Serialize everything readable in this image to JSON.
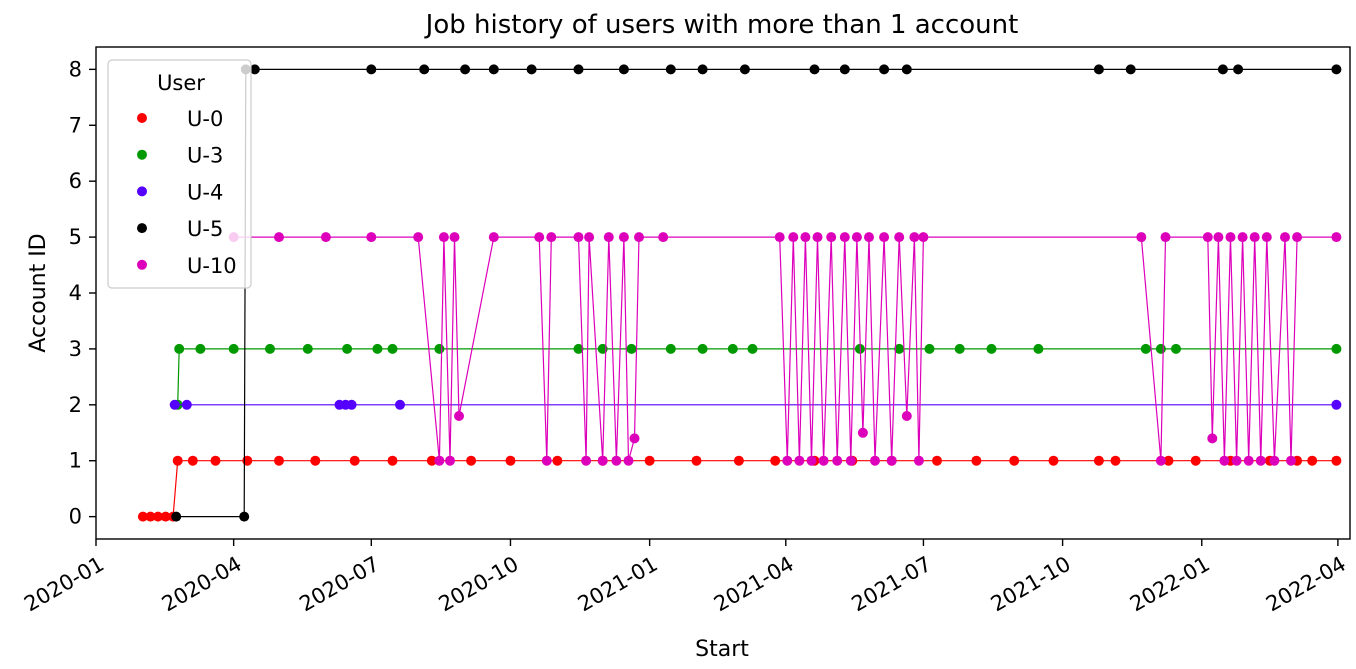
{
  "chart_data": {
    "type": "scatter",
    "title": "Job history of users with more than 1 account",
    "xlabel": "Start",
    "ylabel": "Account ID",
    "x_type": "date",
    "xlim": [
      "2020-01-01",
      "2022-04-09"
    ],
    "ylim": [
      -0.4,
      8.4
    ],
    "x_ticks": [
      "2020-01",
      "2020-04",
      "2020-07",
      "2020-10",
      "2021-01",
      "2021-04",
      "2021-07",
      "2021-10",
      "2022-01",
      "2022-04"
    ],
    "x_tick_dates": [
      "2020-01-01",
      "2020-04-01",
      "2020-07-01",
      "2020-10-01",
      "2021-01-01",
      "2021-04-01",
      "2021-07-01",
      "2021-10-01",
      "2022-01-01",
      "2022-04-01"
    ],
    "y_ticks": [
      0,
      1,
      2,
      3,
      4,
      5,
      6,
      7,
      8
    ],
    "grid": false,
    "connected": true,
    "legend": {
      "title": "User",
      "placement": "upper-left"
    },
    "series": [
      {
        "name": "U-0",
        "color": "#ff0000",
        "base_value": 1,
        "points": [
          [
            "2020-02-01",
            0
          ],
          [
            "2020-02-06",
            0
          ],
          [
            "2020-02-11",
            0
          ],
          [
            "2020-02-16",
            0
          ],
          [
            "2020-02-21",
            0
          ],
          [
            "2020-02-24",
            1
          ],
          [
            "2020-03-05",
            1
          ],
          [
            "2020-03-20",
            1
          ],
          [
            "2020-04-10",
            1
          ],
          [
            "2020-05-01",
            1
          ],
          [
            "2020-05-25",
            1
          ],
          [
            "2020-06-20",
            1
          ],
          [
            "2020-07-15",
            1
          ],
          [
            "2020-08-10",
            1
          ],
          [
            "2020-09-05",
            1
          ],
          [
            "2020-10-01",
            1
          ],
          [
            "2020-11-01",
            1
          ],
          [
            "2020-12-01",
            1
          ],
          [
            "2021-01-01",
            1
          ],
          [
            "2021-02-01",
            1
          ],
          [
            "2021-03-01",
            1
          ],
          [
            "2021-03-25",
            1
          ],
          [
            "2021-04-20",
            1
          ],
          [
            "2021-05-15",
            1
          ],
          [
            "2021-06-10",
            1
          ],
          [
            "2021-07-10",
            1
          ],
          [
            "2021-08-05",
            1
          ],
          [
            "2021-08-30",
            1
          ],
          [
            "2021-09-25",
            1
          ],
          [
            "2021-10-25",
            1
          ],
          [
            "2021-11-05",
            1
          ],
          [
            "2021-12-10",
            1
          ],
          [
            "2021-12-28",
            1
          ],
          [
            "2022-01-20",
            1
          ],
          [
            "2022-02-15",
            1
          ],
          [
            "2022-03-05",
            1
          ],
          [
            "2022-03-15",
            1
          ],
          [
            "2022-03-31",
            1
          ]
        ]
      },
      {
        "name": "U-3",
        "color": "#009900",
        "base_value": 3,
        "points": [
          [
            "2020-02-24",
            2
          ],
          [
            "2020-02-25",
            3
          ],
          [
            "2020-03-10",
            3
          ],
          [
            "2020-04-01",
            3
          ],
          [
            "2020-04-25",
            3
          ],
          [
            "2020-05-20",
            3
          ],
          [
            "2020-06-15",
            3
          ],
          [
            "2020-07-05",
            3
          ],
          [
            "2020-07-15",
            3
          ],
          [
            "2020-08-15",
            3
          ],
          [
            "2020-11-15",
            3
          ],
          [
            "2020-12-01",
            3
          ],
          [
            "2020-12-20",
            3
          ],
          [
            "2021-01-15",
            3
          ],
          [
            "2021-02-05",
            3
          ],
          [
            "2021-02-25",
            3
          ],
          [
            "2021-03-10",
            3
          ],
          [
            "2021-05-20",
            3
          ],
          [
            "2021-06-15",
            3
          ],
          [
            "2021-07-05",
            3
          ],
          [
            "2021-07-25",
            3
          ],
          [
            "2021-08-15",
            3
          ],
          [
            "2021-09-15",
            3
          ],
          [
            "2021-11-25",
            3
          ],
          [
            "2021-12-05",
            3
          ],
          [
            "2021-12-15",
            3
          ],
          [
            "2022-03-31",
            3
          ]
        ]
      },
      {
        "name": "U-4",
        "color": "#5500ff",
        "base_value": 2,
        "points": [
          [
            "2020-02-22",
            2
          ],
          [
            "2020-03-01",
            2
          ],
          [
            "2020-06-10",
            2
          ],
          [
            "2020-06-14",
            2
          ],
          [
            "2020-06-18",
            2
          ],
          [
            "2020-07-20",
            2
          ],
          [
            "2022-03-31",
            2
          ]
        ]
      },
      {
        "name": "U-5",
        "color": "#000000",
        "base_value": 8,
        "points": [
          [
            "2020-02-23",
            0
          ],
          [
            "2020-04-08",
            0
          ],
          [
            "2020-04-09",
            8
          ],
          [
            "2020-04-15",
            8
          ],
          [
            "2020-07-01",
            8
          ],
          [
            "2020-08-05",
            8
          ],
          [
            "2020-09-01",
            8
          ],
          [
            "2020-09-20",
            8
          ],
          [
            "2020-10-15",
            8
          ],
          [
            "2020-11-15",
            8
          ],
          [
            "2020-12-15",
            8
          ],
          [
            "2021-01-15",
            8
          ],
          [
            "2021-02-05",
            8
          ],
          [
            "2021-03-05",
            8
          ],
          [
            "2021-04-20",
            8
          ],
          [
            "2021-05-10",
            8
          ],
          [
            "2021-06-05",
            8
          ],
          [
            "2021-06-20",
            8
          ],
          [
            "2021-10-25",
            8
          ],
          [
            "2021-11-15",
            8
          ],
          [
            "2022-01-15",
            8
          ],
          [
            "2022-01-25",
            8
          ],
          [
            "2022-03-31",
            8
          ]
        ]
      },
      {
        "name": "U-10",
        "color": "#dd00bb",
        "base_value": 5,
        "points": [
          [
            "2020-04-01",
            5
          ],
          [
            "2020-05-01",
            5
          ],
          [
            "2020-06-01",
            5
          ],
          [
            "2020-07-01",
            5
          ],
          [
            "2020-08-01",
            5
          ],
          [
            "2020-08-15",
            1
          ],
          [
            "2020-08-18",
            5
          ],
          [
            "2020-08-22",
            1
          ],
          [
            "2020-08-25",
            5
          ],
          [
            "2020-08-28",
            1.8
          ],
          [
            "2020-09-20",
            5
          ],
          [
            "2020-10-20",
            5
          ],
          [
            "2020-10-25",
            1
          ],
          [
            "2020-10-28",
            5
          ],
          [
            "2020-11-15",
            5
          ],
          [
            "2020-11-20",
            1
          ],
          [
            "2020-11-22",
            5
          ],
          [
            "2020-12-01",
            1
          ],
          [
            "2020-12-05",
            5
          ],
          [
            "2020-12-10",
            1
          ],
          [
            "2020-12-15",
            5
          ],
          [
            "2020-12-18",
            1
          ],
          [
            "2020-12-22",
            1.4
          ],
          [
            "2020-12-25",
            5
          ],
          [
            "2021-01-10",
            5
          ],
          [
            "2021-03-28",
            5
          ],
          [
            "2021-04-02",
            1
          ],
          [
            "2021-04-06",
            5
          ],
          [
            "2021-04-10",
            1
          ],
          [
            "2021-04-14",
            5
          ],
          [
            "2021-04-18",
            1
          ],
          [
            "2021-04-22",
            5
          ],
          [
            "2021-04-26",
            1
          ],
          [
            "2021-05-01",
            5
          ],
          [
            "2021-05-05",
            1
          ],
          [
            "2021-05-10",
            5
          ],
          [
            "2021-05-14",
            1
          ],
          [
            "2021-05-18",
            5
          ],
          [
            "2021-05-22",
            1.5
          ],
          [
            "2021-05-26",
            5
          ],
          [
            "2021-05-30",
            1
          ],
          [
            "2021-06-05",
            5
          ],
          [
            "2021-06-10",
            1
          ],
          [
            "2021-06-15",
            5
          ],
          [
            "2021-06-20",
            1.8
          ],
          [
            "2021-06-25",
            5
          ],
          [
            "2021-06-28",
            1
          ],
          [
            "2021-07-01",
            5
          ],
          [
            "2021-11-22",
            5
          ],
          [
            "2021-12-05",
            1
          ],
          [
            "2021-12-08",
            5
          ],
          [
            "2022-01-05",
            5
          ],
          [
            "2022-01-08",
            1.4
          ],
          [
            "2022-01-12",
            5
          ],
          [
            "2022-01-16",
            1
          ],
          [
            "2022-01-20",
            5
          ],
          [
            "2022-01-24",
            1
          ],
          [
            "2022-01-28",
            5
          ],
          [
            "2022-02-01",
            1
          ],
          [
            "2022-02-05",
            5
          ],
          [
            "2022-02-09",
            1
          ],
          [
            "2022-02-13",
            5
          ],
          [
            "2022-02-18",
            1
          ],
          [
            "2022-02-25",
            5
          ],
          [
            "2022-03-01",
            1
          ],
          [
            "2022-03-05",
            5
          ],
          [
            "2022-03-31",
            5
          ]
        ]
      }
    ]
  }
}
